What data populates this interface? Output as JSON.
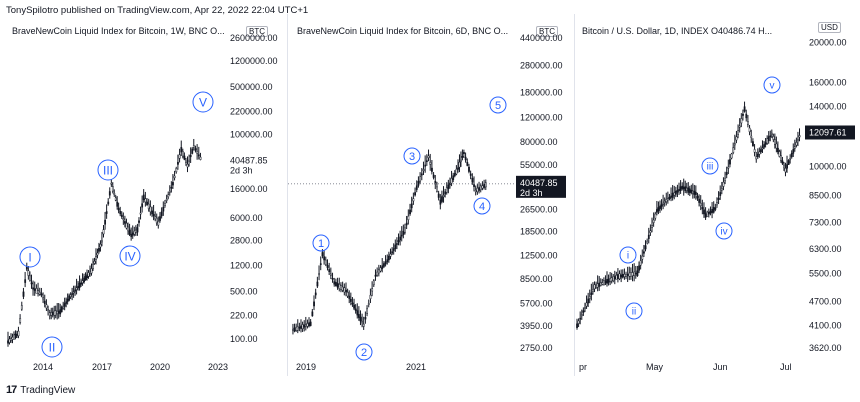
{
  "header": {
    "publisher_line": "TonySpilotro published on TradingView.com, Apr 22, 2022 22:04 UTC+1"
  },
  "footer": {
    "logo": "17",
    "brand": "TradingView"
  },
  "colors": {
    "wave": "#2962ff",
    "candle": "#131722",
    "price_tag": "#131722",
    "dotted": "#787b86"
  },
  "panels": [
    {
      "title": "BraveNewCoin Liquid Index for Bitcoin, 1W, BNC  O...",
      "scale_tag": "BTC",
      "price_label": "40487.85",
      "countdown": "2d 3h",
      "waves": [
        "I",
        "II",
        "III",
        "IV",
        "V"
      ]
    },
    {
      "title": "BraveNewCoin Liquid Index for Bitcoin, 6D, BNC  O...",
      "scale_tag": "BTC",
      "price_label": "40487.85",
      "countdown": "2d 3h",
      "waves": [
        "1",
        "2",
        "3",
        "4",
        "5"
      ]
    },
    {
      "title": "Bitcoin / U.S. Dollar, 1D, INDEX  O40486.74  H...",
      "scale_tag": "USD",
      "price_label": "12097.61",
      "waves": [
        "i",
        "ii",
        "iii",
        "iv",
        "v"
      ]
    }
  ],
  "chart_data": [
    {
      "type": "line",
      "title": "BraveNewCoin Liquid Index for Bitcoin, 1W, BNC",
      "scale": "log",
      "y_ticks": [
        "2600000.00",
        "1200000.00",
        "500000.00",
        "220000.00",
        "100000.00",
        "40487.85",
        "16000.00",
        "6000.00",
        "2800.00",
        "1200.00",
        "500.00",
        "220.00",
        "100.00"
      ],
      "x_ticks": [
        "2014",
        "2017",
        "2020",
        "2023"
      ],
      "x": [
        "2013",
        "2013.5",
        "2013.9",
        "2014.2",
        "2014.6",
        "2015.0",
        "2015.5",
        "2016.0",
        "2016.5",
        "2017.0",
        "2017.5",
        "2017.95",
        "2018.3",
        "2018.9",
        "2019.2",
        "2019.5",
        "2019.9",
        "2020.2",
        "2020.6",
        "2020.9",
        "2021.3",
        "2021.6",
        "2021.9",
        "2022.3"
      ],
      "y": [
        90,
        120,
        1100,
        550,
        450,
        230,
        250,
        430,
        650,
        1000,
        2700,
        19000,
        8000,
        3300,
        4000,
        12000,
        7200,
        5000,
        11000,
        19000,
        60000,
        35000,
        67000,
        40487.85
      ],
      "wave_labels": [
        {
          "label": "I",
          "x": "2013.9"
        },
        {
          "label": "II",
          "x": "2015.0"
        },
        {
          "label": "III",
          "x": "2017.95"
        },
        {
          "label": "IV",
          "x": "2018.9"
        },
        {
          "label": "V",
          "x": "2022.8"
        }
      ]
    },
    {
      "type": "line",
      "title": "BraveNewCoin Liquid Index for Bitcoin, 6D, BNC",
      "scale": "log",
      "y_ticks": [
        "440000.00",
        "280000.00",
        "180000.00",
        "120000.00",
        "80000.00",
        "55000.00",
        "40487.85",
        "26500.00",
        "18500.00",
        "12500.00",
        "8500.00",
        "5700.00",
        "3950.00",
        "2750.00"
      ],
      "x_ticks": [
        "2019",
        "2021"
      ],
      "x": [
        "2019.0",
        "2019.3",
        "2019.5",
        "2019.7",
        "2019.9",
        "2020.2",
        "2020.4",
        "2020.6",
        "2020.9",
        "2021.1",
        "2021.3",
        "2021.5",
        "2021.8",
        "2021.9",
        "2022.1",
        "2022.3"
      ],
      "y": [
        3700,
        4100,
        12800,
        8000,
        7000,
        4000,
        9000,
        11500,
        19000,
        38000,
        63000,
        30000,
        52000,
        67000,
        36000,
        40487.85
      ],
      "wave_labels": [
        {
          "label": "1",
          "x": "2019.5"
        },
        {
          "label": "2",
          "x": "2020.2"
        },
        {
          "label": "3",
          "x": "2021.3"
        },
        {
          "label": "4",
          "x": "2022.2"
        },
        {
          "label": "5",
          "x": "2022.6"
        }
      ]
    },
    {
      "type": "line",
      "title": "Bitcoin / U.S. Dollar, 1D, INDEX",
      "scale": "log",
      "y_ticks": [
        "20000.00",
        "16000.00",
        "14000.00",
        "12097.61",
        "10000.00",
        "8500.00",
        "7300.00",
        "6300.00",
        "5500.00",
        "4700.00",
        "4100.00",
        "3620.00"
      ],
      "x_ticks": [
        "pr",
        "May",
        "Jun",
        "Jul"
      ],
      "x": [
        "Apr 01",
        "Apr 10",
        "Apr 22",
        "May 02",
        "May 12",
        "May 16",
        "May 25",
        "Jun 01",
        "Jun 06",
        "Jun 11",
        "Jun 16",
        "Jun 26",
        "Jul 02",
        "Jul 10",
        "Jul 17",
        "Jul 25"
      ],
      "y": [
        4100,
        5100,
        5400,
        5500,
        7800,
        8200,
        8900,
        8600,
        7600,
        7900,
        9300,
        13800,
        10500,
        12000,
        9800,
        12097.61
      ],
      "wave_labels": [
        {
          "label": "i",
          "x": "Apr 25"
        },
        {
          "label": "ii",
          "x": "May 02"
        },
        {
          "label": "iii",
          "x": "May 30"
        },
        {
          "label": "iv",
          "x": "Jun 07"
        },
        {
          "label": "v",
          "x": "Jun 26"
        }
      ]
    }
  ]
}
